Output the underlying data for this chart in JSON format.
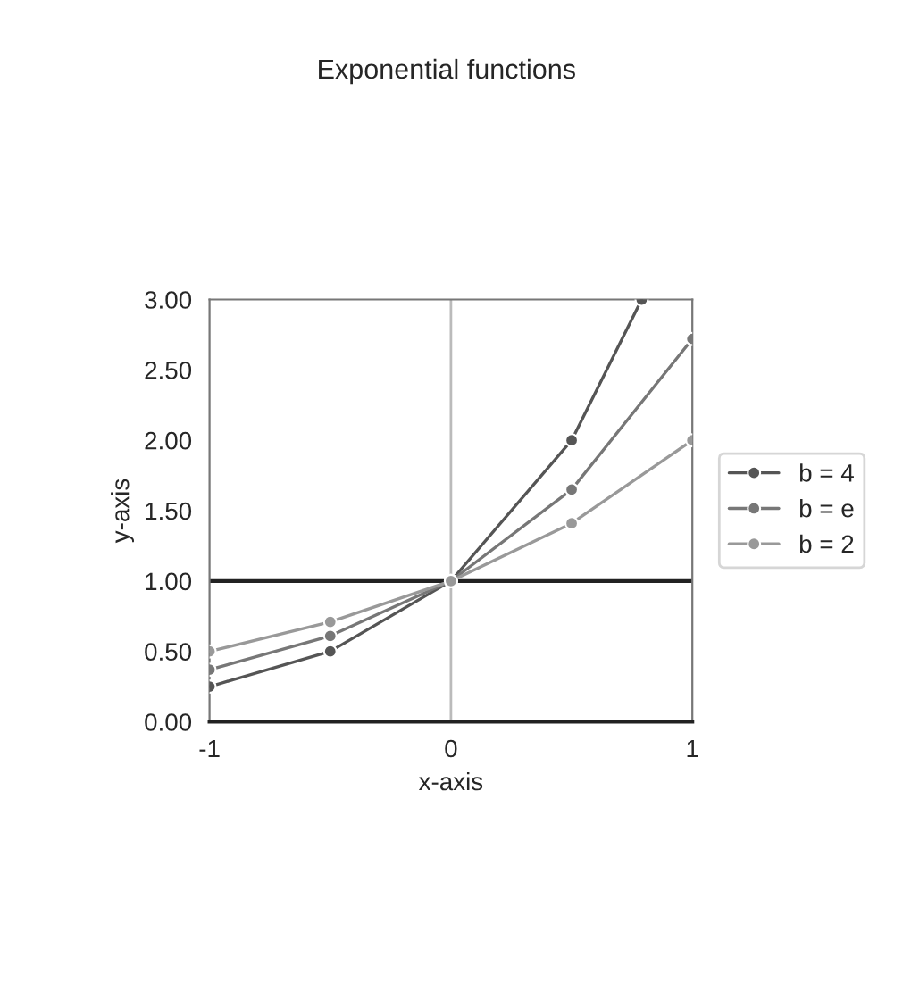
{
  "chart_data": {
    "type": "line",
    "title": "Exponential functions",
    "xlabel": "x-axis",
    "ylabel": "y-axis",
    "series": [
      {
        "name": "b = 4",
        "color": "#555555",
        "x": [
          -1,
          -0.5,
          0,
          0.5,
          0.79
        ],
        "values": [
          0.25,
          0.5,
          1,
          2,
          3
        ]
      },
      {
        "name": "b = e",
        "color": "#777777",
        "x": [
          -1,
          -0.5,
          0,
          0.5,
          1
        ],
        "values": [
          0.37,
          0.61,
          1,
          1.65,
          2.72
        ]
      },
      {
        "name": "b = 2",
        "color": "#999999",
        "x": [
          -1,
          -0.5,
          0,
          0.5,
          1
        ],
        "values": [
          0.5,
          0.71,
          1,
          1.41,
          2
        ]
      }
    ],
    "xlim": [
      -1,
      1
    ],
    "xticks": [
      -1,
      0,
      1
    ],
    "ylim": [
      0,
      3
    ],
    "yticks": [
      {
        "value": 0,
        "label": "0.00"
      },
      {
        "value": 0.5,
        "label": "0.50"
      },
      {
        "value": 1,
        "label": "1.00"
      },
      {
        "value": 1.5,
        "label": "1.50"
      },
      {
        "value": 2,
        "label": "2.00"
      },
      {
        "value": 2.5,
        "label": "2.50"
      },
      {
        "value": 3,
        "label": "3.00"
      }
    ],
    "ref_lines": [
      {
        "axis": "y",
        "value": 1,
        "color": "#222222"
      },
      {
        "axis": "x",
        "value": 0,
        "color": "#bbbbbb"
      }
    ],
    "marker": "circle",
    "line_style": "solid",
    "legend": "right",
    "grid": false
  }
}
